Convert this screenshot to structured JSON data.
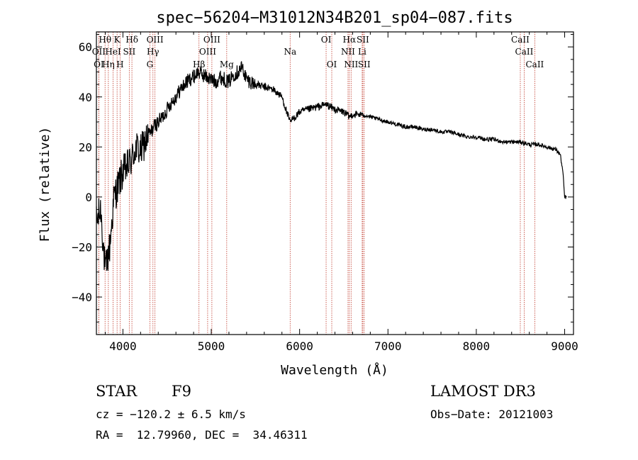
{
  "chart_data": {
    "type": "line",
    "title": "spec−56204−M31012N34B201_sp04−087.fits",
    "xlabel": "Wavelength (Å)",
    "ylabel": "Flux (relative)",
    "xlim": [
      3700,
      9100
    ],
    "ylim": [
      -55,
      66
    ],
    "xticks": [
      4000,
      5000,
      6000,
      7000,
      8000,
      9000
    ],
    "yticks": [
      -40,
      -20,
      0,
      20,
      40,
      60
    ],
    "series": [
      {
        "name": "spectrum",
        "x": [
          3700,
          3750,
          3800,
          3850,
          3900,
          3950,
          4000,
          4050,
          4100,
          4150,
          4200,
          4250,
          4300,
          4350,
          4400,
          4450,
          4500,
          4550,
          4600,
          4650,
          4700,
          4750,
          4800,
          4850,
          4900,
          4950,
          5000,
          5050,
          5100,
          5150,
          5200,
          5250,
          5300,
          5350,
          5400,
          5450,
          5500,
          5600,
          5700,
          5800,
          5890,
          5950,
          6000,
          6100,
          6200,
          6300,
          6400,
          6500,
          6563,
          6600,
          6700,
          6800,
          6900,
          7000,
          7100,
          7200,
          7300,
          7400,
          7500,
          7600,
          7700,
          7800,
          7900,
          8000,
          8100,
          8200,
          8300,
          8400,
          8500,
          8600,
          8700,
          8800,
          8900,
          8950,
          8980,
          9000,
          9020
        ],
        "y": [
          -10,
          -5,
          -30,
          -20,
          0,
          5,
          10,
          12,
          15,
          20,
          18,
          22,
          25,
          28,
          30,
          32,
          35,
          38,
          40,
          43,
          45,
          47,
          48,
          50,
          49,
          48,
          47,
          46,
          48,
          47,
          46,
          49,
          50,
          52,
          47,
          46,
          45,
          44,
          43,
          40,
          30,
          32,
          34,
          35,
          36,
          37,
          35,
          34,
          32,
          33,
          33,
          32,
          31,
          30,
          29,
          28,
          28,
          27,
          27,
          26,
          26,
          25,
          24,
          24,
          23,
          23,
          22,
          22,
          22,
          21,
          21,
          20,
          19,
          17,
          10,
          0,
          0
        ]
      }
    ],
    "lines": [
      {
        "label": "Hθ",
        "wl": 3798,
        "row": 0
      },
      {
        "label": "K",
        "wl": 3934,
        "row": 0
      },
      {
        "label": "Hδ",
        "wl": 4102,
        "row": 0
      },
      {
        "label": "OIII",
        "wl": 4363,
        "row": 0
      },
      {
        "label": "OIII",
        "wl": 5007,
        "row": 0
      },
      {
        "label": "OI",
        "wl": 6300,
        "row": 0
      },
      {
        "label": "Hα",
        "wl": 6563,
        "row": 0
      },
      {
        "label": "SII",
        "wl": 6716,
        "row": 0
      },
      {
        "label": "CaII",
        "wl": 8498,
        "row": 0
      },
      {
        "label": "OII",
        "wl": 3727,
        "row": 1
      },
      {
        "label": "HeI",
        "wl": 3889,
        "row": 1
      },
      {
        "label": "SII",
        "wl": 4072,
        "row": 1
      },
      {
        "label": "Hγ",
        "wl": 4340,
        "row": 1
      },
      {
        "label": "OIII",
        "wl": 4959,
        "row": 1
      },
      {
        "label": "Na",
        "wl": 5893,
        "row": 1
      },
      {
        "label": "NII",
        "wl": 6548,
        "row": 1
      },
      {
        "label": "Li",
        "wl": 6708,
        "row": 1
      },
      {
        "label": "CaII",
        "wl": 8542,
        "row": 1
      },
      {
        "label": "OI",
        "wl": 3727,
        "row": 2
      },
      {
        "label": "Hη",
        "wl": 3835,
        "row": 2
      },
      {
        "label": "H",
        "wl": 3968,
        "row": 2
      },
      {
        "label": "G",
        "wl": 4305,
        "row": 2
      },
      {
        "label": "Hβ",
        "wl": 4861,
        "row": 2
      },
      {
        "label": "Mg",
        "wl": 5175,
        "row": 2
      },
      {
        "label": "OI",
        "wl": 6364,
        "row": 2
      },
      {
        "label": "NII",
        "wl": 6583,
        "row": 2
      },
      {
        "label": "SII",
        "wl": 6731,
        "row": 2
      },
      {
        "label": "CaII",
        "wl": 8662,
        "row": 2
      }
    ]
  },
  "info": {
    "object_class": "STAR",
    "subclass": "F9",
    "survey": "LAMOST DR3",
    "cz": "cz = −120.2 ± 6.5 km/s",
    "obs_date": "Obs−Date: 20121003",
    "coords": "RA =  12.79960, DEC =  34.46311"
  }
}
